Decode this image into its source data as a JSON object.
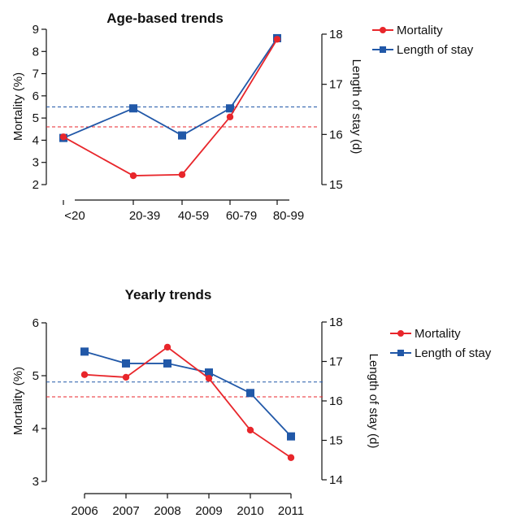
{
  "chart_data": [
    {
      "type": "line",
      "title": "Age-based trends",
      "xlabel": "",
      "ylabel": "Mortality (%)",
      "y2label": "Length of stay (d)",
      "categories": [
        "<20",
        "20-39",
        "40-59",
        "60-79",
        "80-99"
      ],
      "ylim": [
        2,
        9
      ],
      "yticks": [
        2,
        3,
        4,
        5,
        6,
        7,
        8,
        9
      ],
      "y2lim": [
        15,
        18
      ],
      "y2ticks": [
        15,
        16,
        17,
        18
      ],
      "series": [
        {
          "name": "Mortality",
          "axis": "left",
          "color": "#e8262b",
          "marker": "circle",
          "values": [
            4.15,
            2.4,
            2.45,
            5.05,
            8.55
          ]
        },
        {
          "name": "Length of stay",
          "axis": "right",
          "color": "#2158a8",
          "marker": "square",
          "values": [
            15.93,
            16.52,
            15.98,
            16.52,
            17.92
          ]
        }
      ],
      "reference_lines": [
        {
          "axis": "left",
          "value": 4.6,
          "color": "#e8262b"
        },
        {
          "axis": "left",
          "value": 5.5,
          "color": "#2158a8"
        }
      ],
      "legend": "top-right",
      "grid": false
    },
    {
      "type": "line",
      "title": "Yearly trends",
      "xlabel": "",
      "ylabel": "Mortality (%)",
      "y2label": "Length of stay (d)",
      "categories": [
        "2006",
        "2007",
        "2008",
        "2009",
        "2010",
        "2011"
      ],
      "ylim": [
        3,
        6
      ],
      "yticks": [
        3,
        4,
        5,
        6
      ],
      "y2lim": [
        14,
        18
      ],
      "y2ticks": [
        14,
        15,
        16,
        17,
        18
      ],
      "series": [
        {
          "name": "Mortality",
          "axis": "left",
          "color": "#e8262b",
          "marker": "circle",
          "values": [
            5.02,
            4.97,
            5.54,
            4.95,
            3.97,
            3.45
          ]
        },
        {
          "name": "Length of stay",
          "axis": "right",
          "color": "#2158a8",
          "marker": "square",
          "values": [
            17.25,
            16.95,
            16.95,
            16.72,
            16.2,
            15.1
          ]
        }
      ],
      "reference_lines": [
        {
          "axis": "left",
          "value": 4.6,
          "color": "#e8262b"
        },
        {
          "axis": "left",
          "value": 4.88,
          "color": "#2158a8"
        }
      ],
      "legend": "right",
      "grid": false
    }
  ]
}
